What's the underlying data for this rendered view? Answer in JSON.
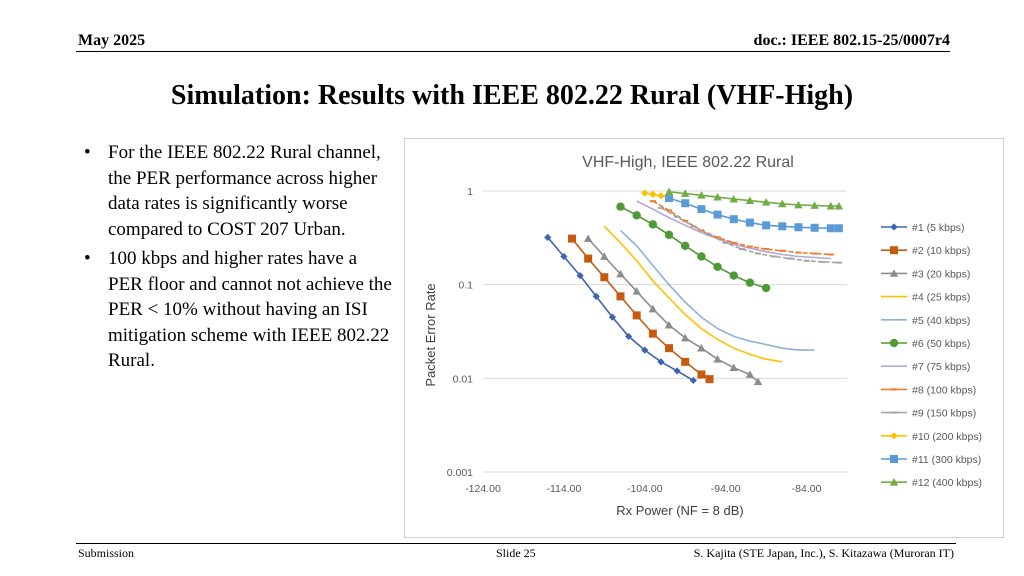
{
  "header": {
    "date": "May 2025",
    "doc": "doc.: IEEE 802.15-25/0007r4"
  },
  "slide": {
    "title": "Simulation: Results with IEEE 802.22 Rural (VHF-High)",
    "bullets": [
      "For the IEEE 802.22 Rural channel, the PER performance across higher data rates is significantly worse compared to COST 207 Urban.",
      "100 kbps and higher rates have a PER floor and cannot not achieve the PER < 10% without having an ISI mitigation scheme with IEEE 802.22 Rural."
    ]
  },
  "footer": {
    "left": "Submission",
    "center": "Slide 25",
    "right": "S. Kajita (STE Japan, Inc.), S. Kitazawa (Muroran IT)"
  },
  "chart_data": {
    "type": "line",
    "title": "VHF-High, IEEE 802.22 Rural",
    "xlabel": "Rx Power (NF = 8 dB)",
    "ylabel": "Packet Error Rate",
    "xlim": [
      -124,
      -79
    ],
    "ylim": [
      0.001,
      1
    ],
    "yscale": "log",
    "xticks": [
      -124,
      -114,
      -104,
      -94,
      -84
    ],
    "xtick_labels": [
      "-124.00",
      "-114.00",
      "-104.00",
      "-94.00",
      "-84.00"
    ],
    "yticks": [
      0.001,
      0.01,
      0.1,
      1
    ],
    "ytick_labels": [
      "0.001",
      "0.01",
      "0.1",
      "1"
    ],
    "grid": "horizontal",
    "legend": "right",
    "series": [
      {
        "name": "#1 (5 kbps)",
        "color": "#3e64ad",
        "marker": "diamond",
        "x": [
          -116,
          -114,
          -112,
          -110,
          -108,
          -106,
          -104,
          -102,
          -100,
          -98
        ],
        "y": [
          0.32,
          0.2,
          0.125,
          0.075,
          0.045,
          0.028,
          0.02,
          0.015,
          0.012,
          0.0095
        ]
      },
      {
        "name": "#2 (10 kbps)",
        "color": "#c55a11",
        "marker": "square",
        "x": [
          -113,
          -111,
          -109,
          -107,
          -105,
          -103,
          -101,
          -99,
          -97,
          -96
        ],
        "y": [
          0.31,
          0.19,
          0.12,
          0.075,
          0.047,
          0.03,
          0.021,
          0.015,
          0.011,
          0.0098
        ]
      },
      {
        "name": "#3 (20 kbps)",
        "color": "#8c8c8c",
        "marker": "triangle",
        "x": [
          -111,
          -109,
          -107,
          -105,
          -103,
          -101,
          -99,
          -97,
          -95,
          -93,
          -91,
          -90
        ],
        "y": [
          0.31,
          0.2,
          0.13,
          0.085,
          0.055,
          0.037,
          0.027,
          0.021,
          0.016,
          0.013,
          0.011,
          0.0092
        ]
      },
      {
        "name": "#4 (25 kbps)",
        "color": "#ffc000",
        "marker": "none",
        "x": [
          -109,
          -107,
          -105,
          -103,
          -101,
          -99,
          -97,
          -95,
          -93,
          -91,
          -89,
          -87
        ],
        "y": [
          0.42,
          0.28,
          0.18,
          0.11,
          0.072,
          0.048,
          0.034,
          0.026,
          0.021,
          0.018,
          0.016,
          0.015
        ]
      },
      {
        "name": "#5 (40 kbps)",
        "color": "#8fb0dd",
        "marker": "none",
        "x": [
          -107,
          -105,
          -103,
          -101,
          -99,
          -97,
          -95,
          -93,
          -91,
          -89,
          -87,
          -85,
          -83
        ],
        "y": [
          0.38,
          0.26,
          0.16,
          0.1,
          0.065,
          0.045,
          0.034,
          0.028,
          0.025,
          0.023,
          0.021,
          0.02,
          0.02
        ]
      },
      {
        "name": "#6 (50 kbps)",
        "color": "#4d9a36",
        "marker": "circle",
        "x": [
          -107,
          -105,
          -103,
          -101,
          -99,
          -97,
          -95,
          -93,
          -91,
          -89
        ],
        "y": [
          0.68,
          0.55,
          0.44,
          0.34,
          0.26,
          0.2,
          0.155,
          0.125,
          0.105,
          0.092
        ]
      },
      {
        "name": "#7 (75 kbps)",
        "color": "#b4a7d6",
        "marker": "none",
        "x": [
          -105,
          -103,
          -101,
          -99,
          -97,
          -95,
          -93,
          -91,
          -89,
          -87,
          -85,
          -83,
          -81
        ],
        "y": [
          0.78,
          0.64,
          0.52,
          0.43,
          0.36,
          0.31,
          0.27,
          0.245,
          0.225,
          0.21,
          0.2,
          0.195,
          0.19
        ]
      },
      {
        "name": "#8 (100 kbps)",
        "color": "#ed7d31",
        "marker": "dash",
        "x": [
          -103,
          -101,
          -99,
          -97,
          -95,
          -93,
          -91,
          -89,
          -87,
          -85,
          -83,
          -81
        ],
        "y": [
          0.78,
          0.62,
          0.48,
          0.38,
          0.32,
          0.28,
          0.255,
          0.24,
          0.23,
          0.22,
          0.215,
          0.21
        ]
      },
      {
        "name": "#9 (150 kbps)",
        "color": "#a5a5a5",
        "marker": "dash",
        "x": [
          -102,
          -100,
          -98,
          -96,
          -94,
          -92,
          -90,
          -88,
          -86,
          -84,
          -82,
          -80
        ],
        "y": [
          0.66,
          0.53,
          0.42,
          0.34,
          0.28,
          0.24,
          0.215,
          0.2,
          0.19,
          0.18,
          0.175,
          0.172
        ]
      },
      {
        "name": "#10 (200 kbps)",
        "color": "#ffc000",
        "marker": "diamond",
        "x": [
          -104,
          -103,
          -102,
          -101
        ],
        "y": [
          0.95,
          0.92,
          0.89,
          0.86
        ]
      },
      {
        "name": "#11 (300 kbps)",
        "color": "#5b9bd5",
        "marker": "square",
        "x": [
          -101,
          -99,
          -97,
          -95,
          -93,
          -91,
          -89,
          -87,
          -85,
          -83,
          -81,
          -80
        ],
        "y": [
          0.84,
          0.74,
          0.64,
          0.56,
          0.5,
          0.46,
          0.43,
          0.42,
          0.41,
          0.405,
          0.4,
          0.4
        ]
      },
      {
        "name": "#12 (400 kbps)",
        "color": "#70ad47",
        "marker": "triangle",
        "x": [
          -101,
          -99,
          -97,
          -95,
          -93,
          -91,
          -89,
          -87,
          -85,
          -83,
          -81,
          -80
        ],
        "y": [
          0.98,
          0.94,
          0.9,
          0.86,
          0.82,
          0.79,
          0.76,
          0.73,
          0.71,
          0.7,
          0.69,
          0.69
        ]
      }
    ]
  }
}
